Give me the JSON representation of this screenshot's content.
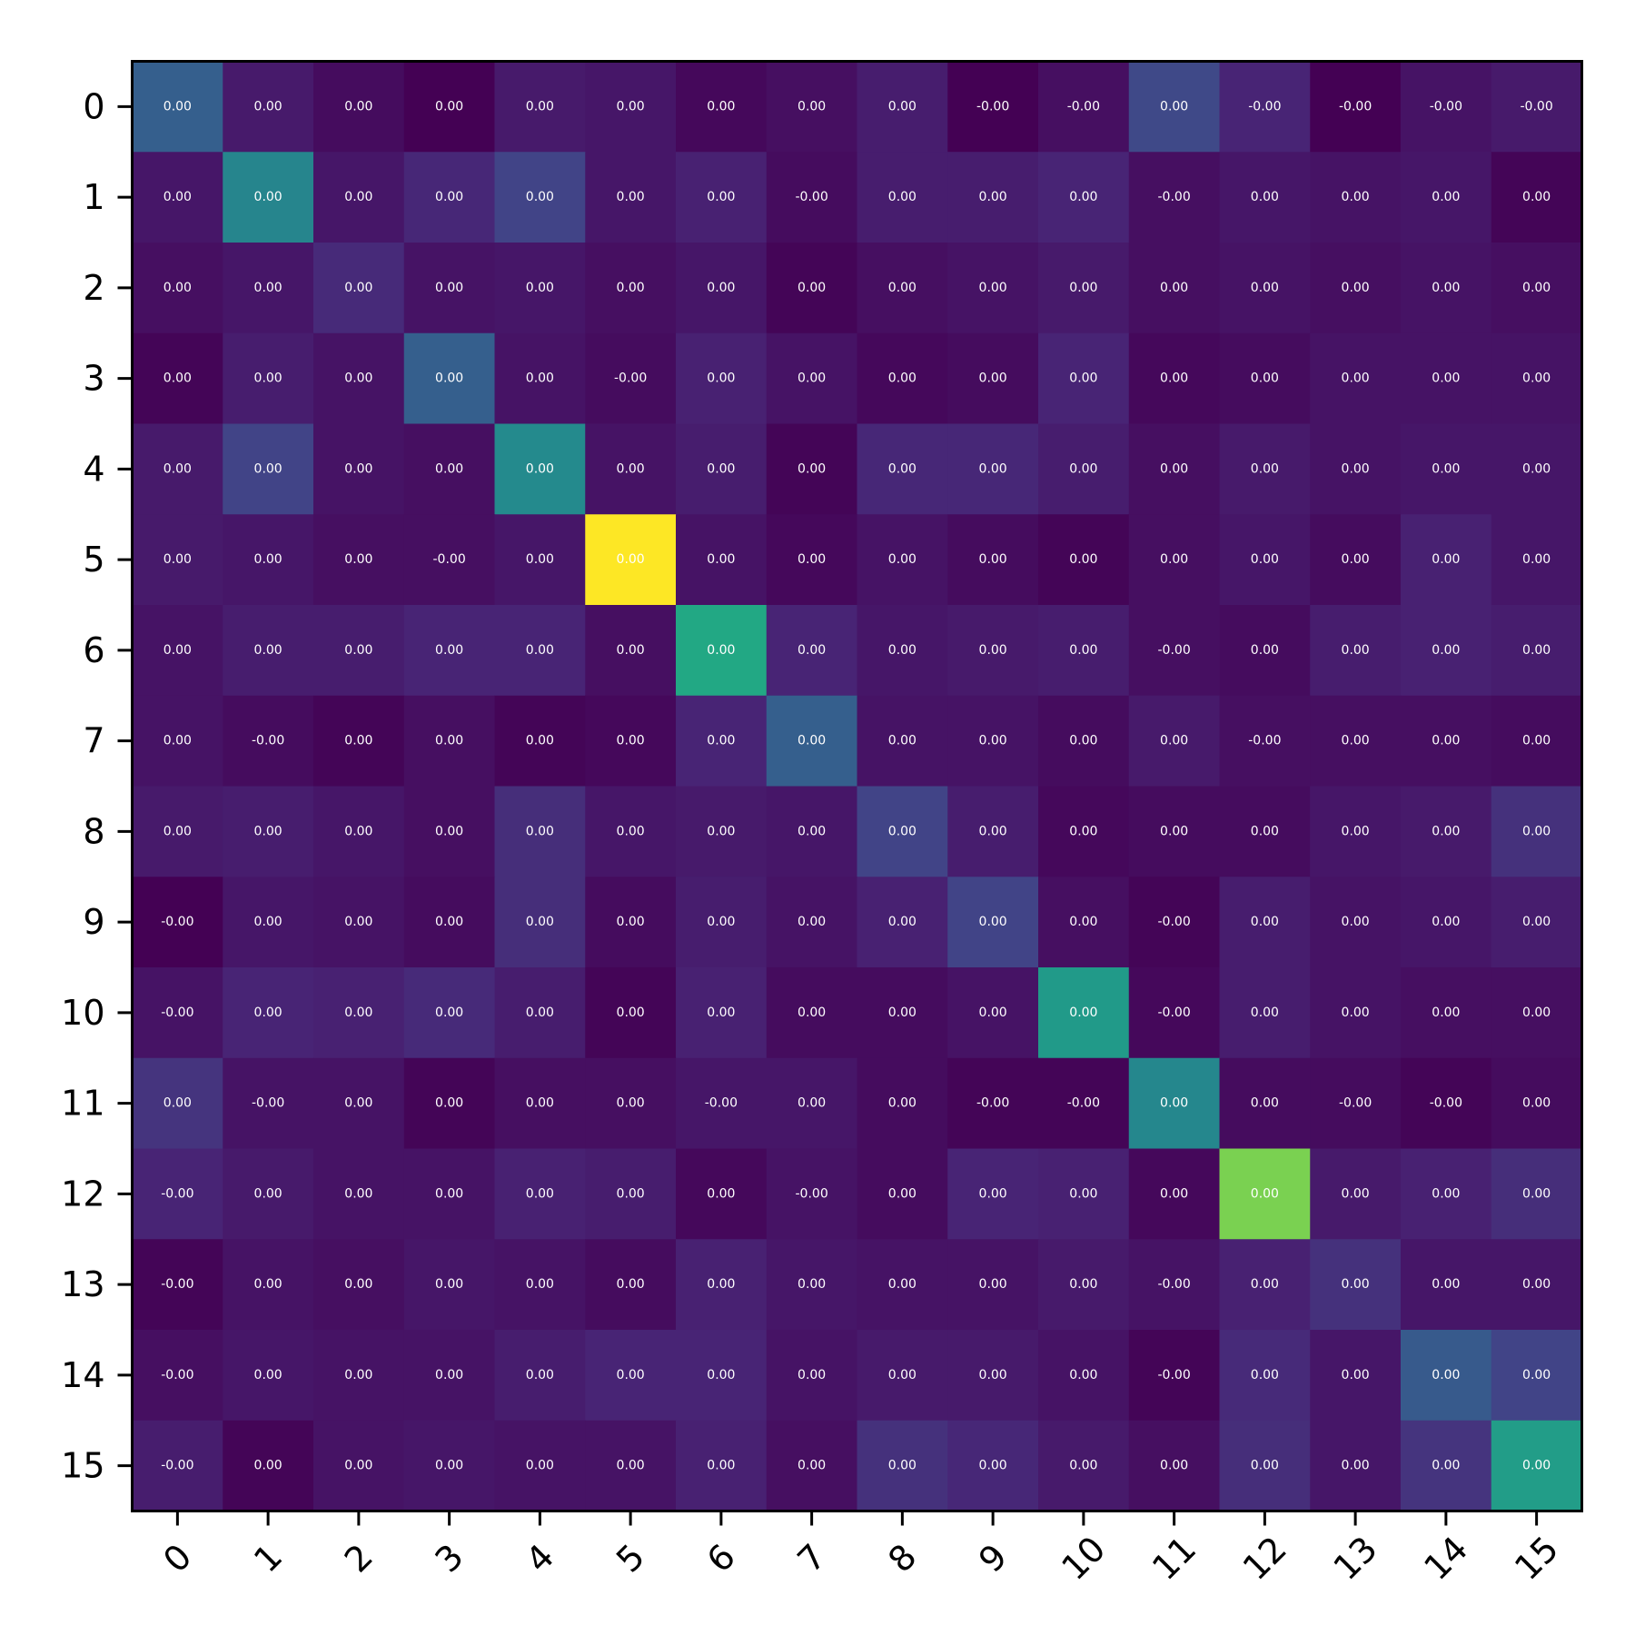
{
  "chart_data": {
    "type": "heatmap",
    "title": "",
    "xlabel": "",
    "ylabel": "",
    "x_categories": [
      "0",
      "1",
      "2",
      "3",
      "4",
      "5",
      "6",
      "7",
      "8",
      "9",
      "10",
      "11",
      "12",
      "13",
      "14",
      "15"
    ],
    "y_categories": [
      "0",
      "1",
      "2",
      "3",
      "4",
      "5",
      "6",
      "7",
      "8",
      "9",
      "10",
      "11",
      "12",
      "13",
      "14",
      "15"
    ],
    "x_tick_rotation": 45,
    "colormap": "viridis",
    "value_range": [
      0,
      1
    ],
    "grid": false,
    "intensity": [
      [
        0.3,
        0.07,
        0.03,
        0.0,
        0.07,
        0.06,
        0.02,
        0.04,
        0.08,
        0.0,
        0.04,
        0.22,
        0.1,
        0.0,
        0.05,
        0.07
      ],
      [
        0.06,
        0.45,
        0.06,
        0.11,
        0.2,
        0.06,
        0.09,
        0.03,
        0.08,
        0.08,
        0.1,
        0.04,
        0.06,
        0.05,
        0.06,
        0.01
      ],
      [
        0.04,
        0.06,
        0.12,
        0.05,
        0.06,
        0.04,
        0.06,
        0.01,
        0.04,
        0.05,
        0.07,
        0.04,
        0.05,
        0.04,
        0.05,
        0.04
      ],
      [
        0.01,
        0.08,
        0.05,
        0.3,
        0.05,
        0.03,
        0.09,
        0.05,
        0.02,
        0.03,
        0.1,
        0.02,
        0.03,
        0.05,
        0.05,
        0.05
      ],
      [
        0.07,
        0.2,
        0.05,
        0.04,
        0.47,
        0.05,
        0.08,
        0.01,
        0.11,
        0.11,
        0.08,
        0.04,
        0.07,
        0.05,
        0.06,
        0.06
      ],
      [
        0.07,
        0.06,
        0.04,
        0.04,
        0.06,
        1.0,
        0.05,
        0.02,
        0.05,
        0.03,
        0.01,
        0.04,
        0.06,
        0.03,
        0.09,
        0.06
      ],
      [
        0.05,
        0.08,
        0.08,
        0.1,
        0.1,
        0.04,
        0.6,
        0.1,
        0.06,
        0.07,
        0.08,
        0.04,
        0.03,
        0.08,
        0.09,
        0.08
      ],
      [
        0.05,
        0.03,
        0.01,
        0.04,
        0.01,
        0.02,
        0.1,
        0.3,
        0.05,
        0.05,
        0.03,
        0.07,
        0.04,
        0.04,
        0.04,
        0.03
      ],
      [
        0.07,
        0.08,
        0.06,
        0.04,
        0.13,
        0.06,
        0.07,
        0.06,
        0.2,
        0.08,
        0.02,
        0.03,
        0.03,
        0.06,
        0.07,
        0.14
      ],
      [
        0.0,
        0.06,
        0.05,
        0.03,
        0.13,
        0.03,
        0.08,
        0.05,
        0.09,
        0.2,
        0.04,
        0.01,
        0.08,
        0.05,
        0.06,
        0.08
      ],
      [
        0.05,
        0.1,
        0.09,
        0.12,
        0.08,
        0.01,
        0.09,
        0.03,
        0.03,
        0.05,
        0.54,
        0.02,
        0.08,
        0.05,
        0.04,
        0.04
      ],
      [
        0.15,
        0.05,
        0.05,
        0.01,
        0.04,
        0.04,
        0.06,
        0.06,
        0.03,
        0.01,
        0.01,
        0.46,
        0.03,
        0.03,
        0.01,
        0.03
      ],
      [
        0.1,
        0.07,
        0.05,
        0.05,
        0.09,
        0.08,
        0.02,
        0.05,
        0.03,
        0.1,
        0.09,
        0.02,
        0.8,
        0.07,
        0.09,
        0.13
      ],
      [
        0.01,
        0.05,
        0.04,
        0.06,
        0.05,
        0.03,
        0.09,
        0.06,
        0.05,
        0.05,
        0.07,
        0.05,
        0.09,
        0.14,
        0.06,
        0.06
      ],
      [
        0.04,
        0.06,
        0.05,
        0.05,
        0.08,
        0.1,
        0.1,
        0.05,
        0.07,
        0.07,
        0.05,
        0.01,
        0.12,
        0.06,
        0.28,
        0.2
      ],
      [
        0.08,
        0.01,
        0.05,
        0.06,
        0.05,
        0.05,
        0.09,
        0.04,
        0.14,
        0.11,
        0.07,
        0.04,
        0.13,
        0.06,
        0.15,
        0.55
      ]
    ],
    "cell_labels": [
      [
        "0.00",
        "0.00",
        "0.00",
        "0.00",
        "0.00",
        "0.00",
        "0.00",
        "0.00",
        "0.00",
        "-0.00",
        "-0.00",
        "0.00",
        "-0.00",
        "-0.00",
        "-0.00",
        "-0.00"
      ],
      [
        "0.00",
        "0.00",
        "0.00",
        "0.00",
        "0.00",
        "0.00",
        "0.00",
        "-0.00",
        "0.00",
        "0.00",
        "0.00",
        "-0.00",
        "0.00",
        "0.00",
        "0.00",
        "0.00"
      ],
      [
        "0.00",
        "0.00",
        "0.00",
        "0.00",
        "0.00",
        "0.00",
        "0.00",
        "0.00",
        "0.00",
        "0.00",
        "0.00",
        "0.00",
        "0.00",
        "0.00",
        "0.00",
        "0.00"
      ],
      [
        "0.00",
        "0.00",
        "0.00",
        "0.00",
        "0.00",
        "-0.00",
        "0.00",
        "0.00",
        "0.00",
        "0.00",
        "0.00",
        "0.00",
        "0.00",
        "0.00",
        "0.00",
        "0.00"
      ],
      [
        "0.00",
        "0.00",
        "0.00",
        "0.00",
        "0.00",
        "0.00",
        "0.00",
        "0.00",
        "0.00",
        "0.00",
        "0.00",
        "0.00",
        "0.00",
        "0.00",
        "0.00",
        "0.00"
      ],
      [
        "0.00",
        "0.00",
        "0.00",
        "-0.00",
        "0.00",
        "0.00",
        "0.00",
        "0.00",
        "0.00",
        "0.00",
        "0.00",
        "0.00",
        "0.00",
        "0.00",
        "0.00",
        "0.00"
      ],
      [
        "0.00",
        "0.00",
        "0.00",
        "0.00",
        "0.00",
        "0.00",
        "0.00",
        "0.00",
        "0.00",
        "0.00",
        "0.00",
        "-0.00",
        "0.00",
        "0.00",
        "0.00",
        "0.00"
      ],
      [
        "0.00",
        "-0.00",
        "0.00",
        "0.00",
        "0.00",
        "0.00",
        "0.00",
        "0.00",
        "0.00",
        "0.00",
        "0.00",
        "0.00",
        "-0.00",
        "0.00",
        "0.00",
        "0.00"
      ],
      [
        "0.00",
        "0.00",
        "0.00",
        "0.00",
        "0.00",
        "0.00",
        "0.00",
        "0.00",
        "0.00",
        "0.00",
        "0.00",
        "0.00",
        "0.00",
        "0.00",
        "0.00",
        "0.00"
      ],
      [
        "-0.00",
        "0.00",
        "0.00",
        "0.00",
        "0.00",
        "0.00",
        "0.00",
        "0.00",
        "0.00",
        "0.00",
        "0.00",
        "-0.00",
        "0.00",
        "0.00",
        "0.00",
        "0.00"
      ],
      [
        "-0.00",
        "0.00",
        "0.00",
        "0.00",
        "0.00",
        "0.00",
        "0.00",
        "0.00",
        "0.00",
        "0.00",
        "0.00",
        "-0.00",
        "0.00",
        "0.00",
        "0.00",
        "0.00"
      ],
      [
        "0.00",
        "-0.00",
        "0.00",
        "0.00",
        "0.00",
        "0.00",
        "-0.00",
        "0.00",
        "0.00",
        "-0.00",
        "-0.00",
        "0.00",
        "0.00",
        "-0.00",
        "-0.00",
        "0.00"
      ],
      [
        "-0.00",
        "0.00",
        "0.00",
        "0.00",
        "0.00",
        "0.00",
        "0.00",
        "-0.00",
        "0.00",
        "0.00",
        "0.00",
        "0.00",
        "0.00",
        "0.00",
        "0.00",
        "0.00"
      ],
      [
        "-0.00",
        "0.00",
        "0.00",
        "0.00",
        "0.00",
        "0.00",
        "0.00",
        "0.00",
        "0.00",
        "0.00",
        "0.00",
        "-0.00",
        "0.00",
        "0.00",
        "0.00",
        "0.00"
      ],
      [
        "-0.00",
        "0.00",
        "0.00",
        "0.00",
        "0.00",
        "0.00",
        "0.00",
        "0.00",
        "0.00",
        "0.00",
        "0.00",
        "-0.00",
        "0.00",
        "0.00",
        "0.00",
        "0.00"
      ],
      [
        "-0.00",
        "0.00",
        "0.00",
        "0.00",
        "0.00",
        "0.00",
        "0.00",
        "0.00",
        "0.00",
        "0.00",
        "0.00",
        "0.00",
        "0.00",
        "0.00",
        "0.00",
        "0.00"
      ]
    ]
  }
}
